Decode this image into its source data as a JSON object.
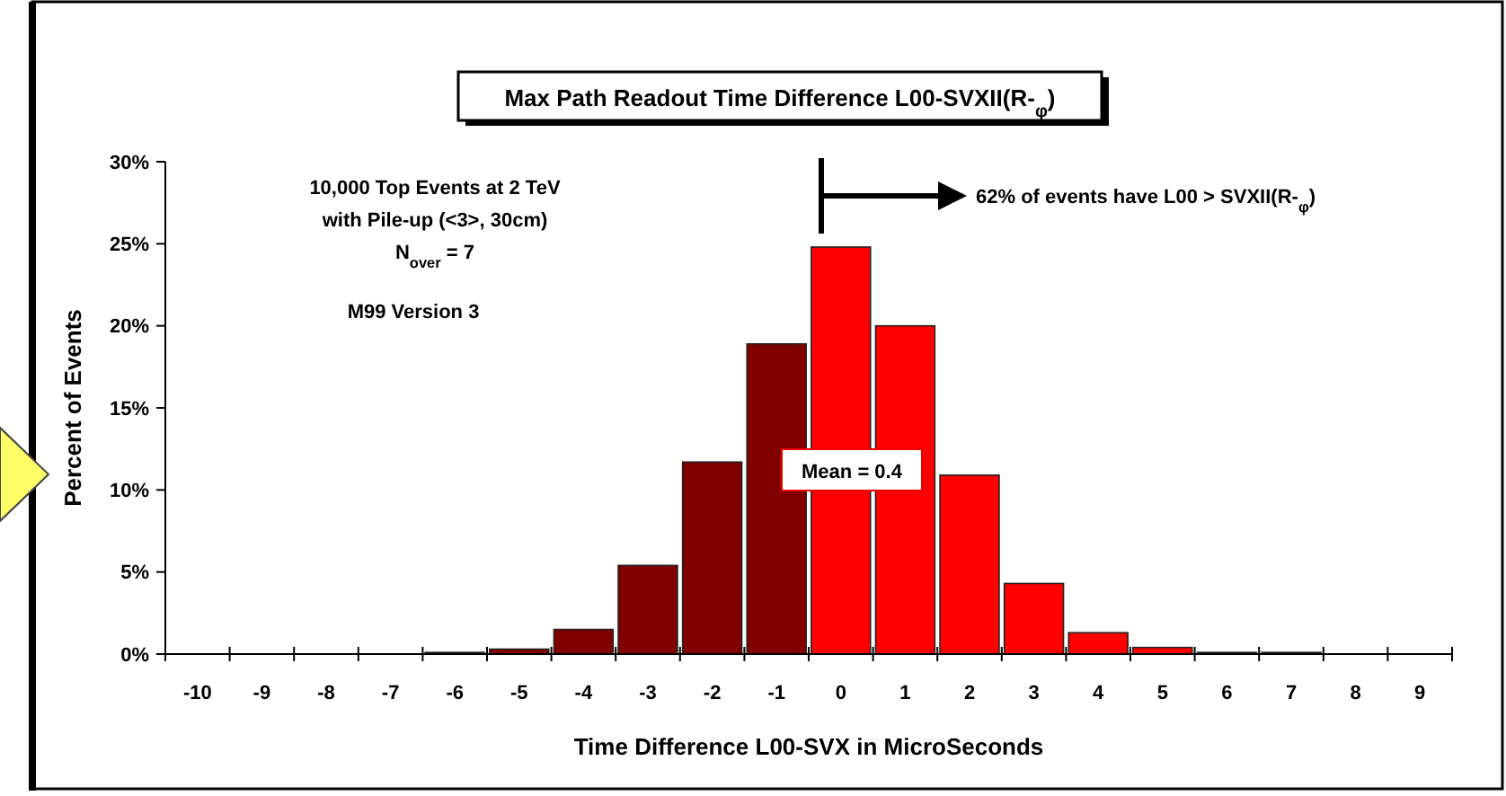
{
  "chart_data": {
    "type": "bar",
    "title": "Max Path Readout Time Difference L00-SVXII(R-$_{φ}$)",
    "xlabel": "Time Difference L00-SVX in MicroSeconds",
    "ylabel": "Percent of Events",
    "categories": [
      "-10",
      "-9",
      "-8",
      "-7",
      "-6",
      "-5",
      "-4",
      "-3",
      "-2",
      "-1",
      "0",
      "1",
      "2",
      "3",
      "4",
      "5",
      "6",
      "7",
      "8",
      "9"
    ],
    "values": [
      0,
      0,
      0,
      0,
      0.1,
      0.3,
      1.5,
      5.4,
      11.7,
      18.9,
      24.8,
      20,
      10.9,
      4.3,
      1.3,
      0.4,
      0.1,
      0.1,
      0,
      0
    ],
    "colors": [
      "#800000",
      "#800000",
      "#800000",
      "#800000",
      "#800000",
      "#800000",
      "#800000",
      "#800000",
      "#800000",
      "#800000",
      "#ff0000",
      "#ff0000",
      "#ff0000",
      "#ff0000",
      "#ff0000",
      "#ff0000",
      "#ff0000",
      "#ff0000",
      "#ff0000",
      "#ff0000"
    ],
    "ylim": [
      0,
      30
    ],
    "yticks": [
      {
        "value": 0,
        "label": "0%"
      },
      {
        "value": 5,
        "label": "5%"
      },
      {
        "value": 10,
        "label": "10%"
      },
      {
        "value": 15,
        "label": "15%"
      },
      {
        "value": 20,
        "label": "20%"
      },
      {
        "value": 25,
        "label": "25%"
      },
      {
        "value": 30,
        "label": "30%"
      }
    ],
    "grid": false,
    "annotations": [
      "10,000 Top Events at 2 TeV",
      "with Pile-up (<3>, 30cm)",
      "N$_{over}$ = 7",
      "M99 Version 3",
      "62% of events have L00 > SVXII(R-$_{φ}$)",
      "Mean = 0.4"
    ]
  }
}
